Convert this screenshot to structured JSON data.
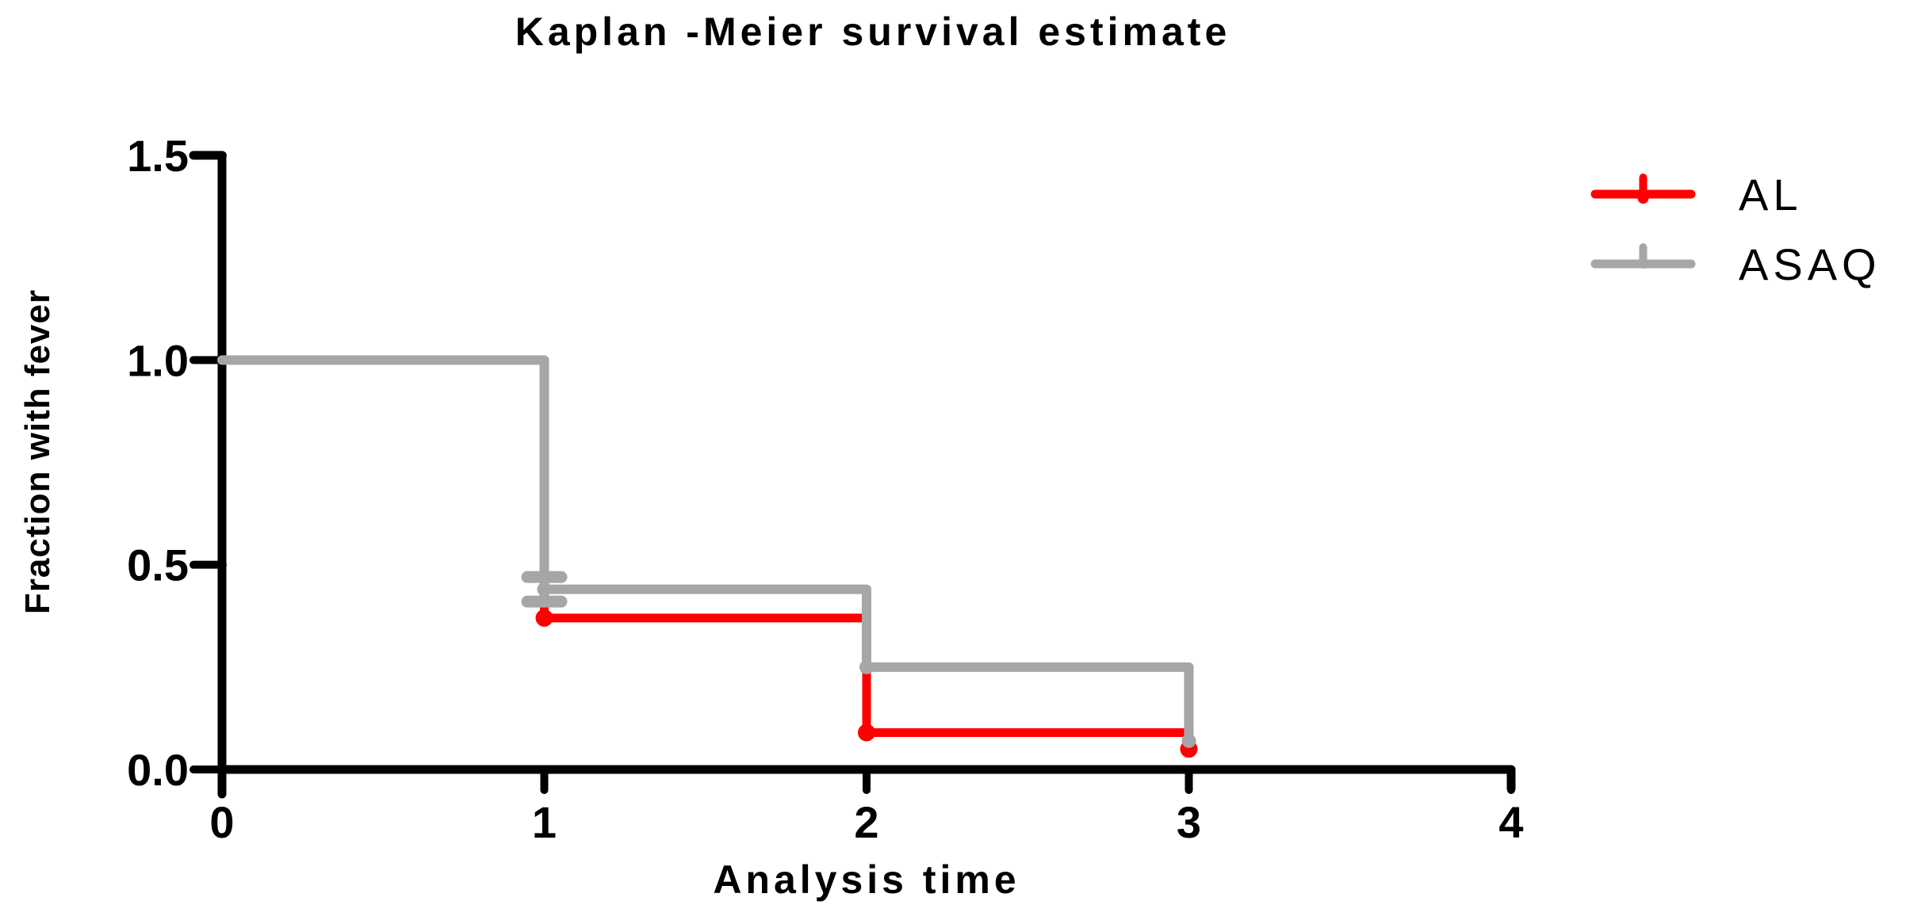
{
  "chart_data": {
    "type": "line",
    "subtype": "kaplan-meier-step",
    "title": "Kaplan -Meier survival estimate",
    "xlabel": "Analysis time",
    "ylabel": "Fraction with fever",
    "xlim": [
      0,
      4
    ],
    "ylim": [
      0,
      1.5
    ],
    "grid": false,
    "legend_position": "top-right",
    "x_tick_values": [
      0,
      1,
      2,
      3,
      4
    ],
    "x_tick_labels": [
      "0",
      "1",
      "2",
      "3",
      "4"
    ],
    "y_tick_values": [
      1.5,
      1.0,
      0.5,
      0.0
    ],
    "y_tick_labels": [
      "1.5",
      "1.0",
      "0.5",
      "0.0"
    ],
    "axis_color": "#000000",
    "series": [
      {
        "name": "AL",
        "color": "#ff0000",
        "steps": [
          {
            "t_start": 0,
            "t_end": 1,
            "fraction": 1.0
          },
          {
            "t_start": 1,
            "t_end": 2,
            "fraction": 0.37
          },
          {
            "t_start": 2,
            "t_end": 3,
            "fraction": 0.09
          }
        ],
        "terminal_drop": {
          "time": 3,
          "fraction": 0.05
        },
        "event_markers": [
          {
            "time": 1,
            "fraction": 0.37
          },
          {
            "time": 2,
            "fraction": 0.09
          },
          {
            "time": 3,
            "fraction": 0.05
          }
        ]
      },
      {
        "name": "ASAQ",
        "color": "#a6a6a6",
        "steps": [
          {
            "t_start": 0,
            "t_end": 1,
            "fraction": 1.0
          },
          {
            "t_start": 1,
            "t_end": 2,
            "fraction": 0.44
          },
          {
            "t_start": 2,
            "t_end": 3,
            "fraction": 0.25
          }
        ],
        "terminal_drop": {
          "time": 3,
          "fraction": 0.07
        },
        "censor_ticks": [
          {
            "time": 1,
            "fraction": 0.47
          },
          {
            "time": 1,
            "fraction": 0.41
          }
        ],
        "corner_dots": [
          {
            "time": 1,
            "fraction": 0.44
          },
          {
            "time": 2,
            "fraction": 0.25
          },
          {
            "time": 3,
            "fraction": 0.07
          }
        ]
      }
    ]
  }
}
